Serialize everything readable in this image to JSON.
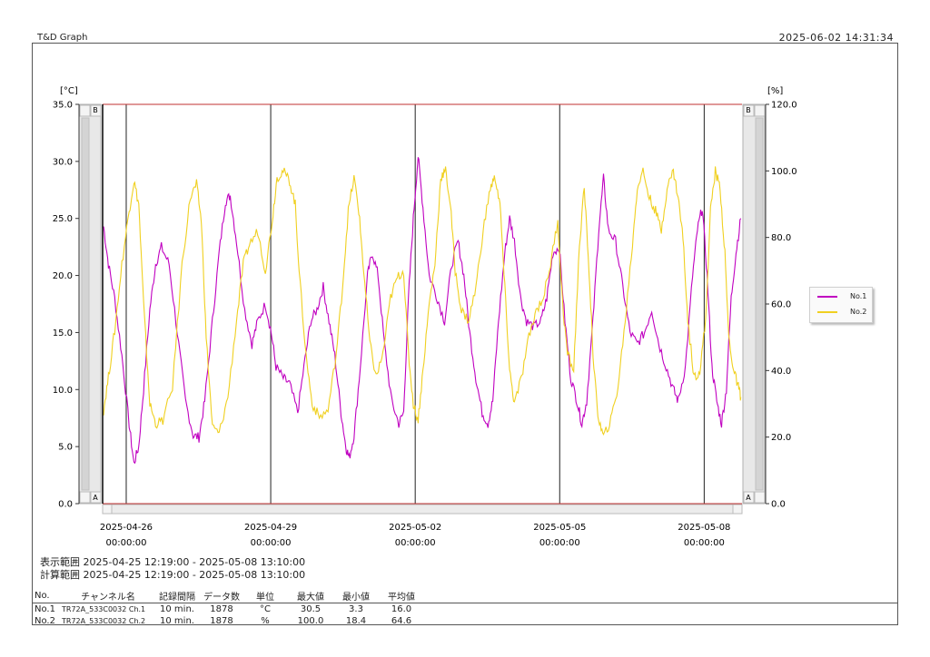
{
  "header": {
    "title": "T&D Graph",
    "timestamp": "2025-06-02 14:31:34"
  },
  "chart_data": {
    "type": "line",
    "y_left": {
      "unit_label": "[°C]",
      "min": 0,
      "max": 35,
      "ticks": [
        "0.0",
        "5.0",
        "10.0",
        "15.0",
        "20.0",
        "25.0",
        "30.0",
        "35.0"
      ],
      "tick_values": [
        0,
        5,
        10,
        15,
        20,
        25,
        30,
        35
      ]
    },
    "y_right": {
      "unit_label": "[%]",
      "min": 0,
      "max": 120,
      "ticks": [
        "0.0",
        "20.0",
        "40.0",
        "60.0",
        "80.0",
        "100.0",
        "120.0"
      ],
      "tick_values": [
        0,
        20,
        40,
        60,
        80,
        100,
        120
      ]
    },
    "x_axis": {
      "ticks": [
        {
          "date": "2025-04-26",
          "time": "00:00:00",
          "day": 0.49
        },
        {
          "date": "2025-04-29",
          "time": "00:00:00",
          "day": 3.49
        },
        {
          "date": "2025-05-02",
          "time": "00:00:00",
          "day": 6.49
        },
        {
          "date": "2025-05-05",
          "time": "00:00:00",
          "day": 9.49
        },
        {
          "date": "2025-05-08",
          "time": "00:00:00",
          "day": 12.49
        }
      ]
    },
    "cursor_labels": {
      "top": "B",
      "bottom": "A"
    },
    "series": [
      {
        "name": "No.1",
        "axis": "left",
        "color": "#c000c0",
        "points": [
          [
            0.02,
            24.3
          ],
          [
            0.12,
            21
          ],
          [
            0.25,
            18
          ],
          [
            0.4,
            13
          ],
          [
            0.55,
            7
          ],
          [
            0.65,
            3.5
          ],
          [
            0.75,
            5
          ],
          [
            0.85,
            10
          ],
          [
            0.98,
            17
          ],
          [
            1.1,
            21
          ],
          [
            1.22,
            22.5
          ],
          [
            1.38,
            21
          ],
          [
            1.55,
            15
          ],
          [
            1.72,
            9
          ],
          [
            1.88,
            6
          ],
          [
            2.0,
            5.8
          ],
          [
            2.12,
            9
          ],
          [
            2.28,
            16
          ],
          [
            2.42,
            22
          ],
          [
            2.55,
            26.5
          ],
          [
            2.65,
            27
          ],
          [
            2.78,
            23
          ],
          [
            2.95,
            17
          ],
          [
            3.1,
            14
          ],
          [
            3.22,
            16
          ],
          [
            3.38,
            17.5
          ],
          [
            3.5,
            15
          ],
          [
            3.6,
            12
          ],
          [
            3.75,
            11
          ],
          [
            3.88,
            10.5
          ],
          [
            4.05,
            8
          ],
          [
            4.18,
            12
          ],
          [
            4.32,
            16
          ],
          [
            4.45,
            17
          ],
          [
            4.58,
            19
          ],
          [
            4.7,
            16
          ],
          [
            4.82,
            13
          ],
          [
            4.95,
            8
          ],
          [
            5.05,
            5
          ],
          [
            5.12,
            4
          ],
          [
            5.22,
            6
          ],
          [
            5.35,
            12
          ],
          [
            5.5,
            20
          ],
          [
            5.6,
            22
          ],
          [
            5.72,
            20
          ],
          [
            5.85,
            14
          ],
          [
            6.0,
            9
          ],
          [
            6.15,
            7
          ],
          [
            6.25,
            8
          ],
          [
            6.35,
            18
          ],
          [
            6.45,
            25
          ],
          [
            6.55,
            30.5
          ],
          [
            6.65,
            26
          ],
          [
            6.78,
            20
          ],
          [
            6.95,
            18
          ],
          [
            7.1,
            16
          ],
          [
            7.25,
            21
          ],
          [
            7.38,
            23
          ],
          [
            7.5,
            20
          ],
          [
            7.62,
            15
          ],
          [
            7.75,
            11
          ],
          [
            7.88,
            8
          ],
          [
            8.0,
            7
          ],
          [
            8.1,
            9
          ],
          [
            8.22,
            16
          ],
          [
            8.35,
            22
          ],
          [
            8.45,
            25
          ],
          [
            8.55,
            23
          ],
          [
            8.68,
            18
          ],
          [
            8.8,
            16
          ],
          [
            8.95,
            15.5
          ],
          [
            9.1,
            16
          ],
          [
            9.22,
            18
          ],
          [
            9.35,
            22
          ],
          [
            9.48,
            22.5
          ],
          [
            9.6,
            16
          ],
          [
            9.72,
            11
          ],
          [
            9.85,
            9
          ],
          [
            9.95,
            7
          ],
          [
            10.05,
            9
          ],
          [
            10.18,
            16
          ],
          [
            10.3,
            24
          ],
          [
            10.4,
            28.5
          ],
          [
            10.5,
            24
          ],
          [
            10.65,
            23
          ],
          [
            10.8,
            19
          ],
          [
            10.95,
            15
          ],
          [
            11.1,
            14
          ],
          [
            11.25,
            15
          ],
          [
            11.4,
            17
          ],
          [
            11.55,
            14
          ],
          [
            11.7,
            12
          ],
          [
            11.85,
            10
          ],
          [
            11.95,
            9
          ],
          [
            12.1,
            12
          ],
          [
            12.25,
            20
          ],
          [
            12.35,
            24
          ],
          [
            12.45,
            26
          ],
          [
            12.55,
            20
          ],
          [
            12.65,
            12
          ],
          [
            12.75,
            9
          ],
          [
            12.85,
            7
          ],
          [
            12.95,
            10
          ],
          [
            13.05,
            18
          ],
          [
            13.15,
            22
          ],
          [
            13.25,
            25
          ]
        ]
      },
      {
        "name": "No.2",
        "axis": "right",
        "color": "#f0d020",
        "points": [
          [
            0.02,
            28
          ],
          [
            0.12,
            38
          ],
          [
            0.25,
            52
          ],
          [
            0.4,
            72
          ],
          [
            0.55,
            88
          ],
          [
            0.65,
            97
          ],
          [
            0.75,
            90
          ],
          [
            0.85,
            60
          ],
          [
            0.98,
            30
          ],
          [
            1.1,
            24
          ],
          [
            1.25,
            25
          ],
          [
            1.45,
            35
          ],
          [
            1.65,
            72
          ],
          [
            1.82,
            92
          ],
          [
            1.95,
            96
          ],
          [
            2.05,
            85
          ],
          [
            2.15,
            50
          ],
          [
            2.28,
            23
          ],
          [
            2.42,
            21
          ],
          [
            2.6,
            32
          ],
          [
            2.78,
            55
          ],
          [
            2.92,
            72
          ],
          [
            3.05,
            78
          ],
          [
            3.22,
            82
          ],
          [
            3.38,
            70
          ],
          [
            3.52,
            85
          ],
          [
            3.62,
            98
          ],
          [
            3.75,
            100
          ],
          [
            3.88,
            97
          ],
          [
            4.0,
            90
          ],
          [
            4.08,
            70
          ],
          [
            4.22,
            45
          ],
          [
            4.35,
            30
          ],
          [
            4.5,
            26
          ],
          [
            4.68,
            28
          ],
          [
            4.85,
            45
          ],
          [
            4.98,
            65
          ],
          [
            5.1,
            88
          ],
          [
            5.22,
            98
          ],
          [
            5.32,
            88
          ],
          [
            5.42,
            70
          ],
          [
            5.55,
            48
          ],
          [
            5.68,
            38
          ],
          [
            5.82,
            45
          ],
          [
            5.98,
            62
          ],
          [
            6.12,
            68
          ],
          [
            6.25,
            70
          ],
          [
            6.35,
            45
          ],
          [
            6.45,
            30
          ],
          [
            6.55,
            25
          ],
          [
            6.65,
            40
          ],
          [
            6.78,
            60
          ],
          [
            6.9,
            72
          ],
          [
            7.02,
            98
          ],
          [
            7.12,
            100
          ],
          [
            7.22,
            90
          ],
          [
            7.32,
            70
          ],
          [
            7.45,
            58
          ],
          [
            7.6,
            55
          ],
          [
            7.75,
            65
          ],
          [
            7.9,
            82
          ],
          [
            8.05,
            95
          ],
          [
            8.15,
            98
          ],
          [
            8.25,
            90
          ],
          [
            8.35,
            65
          ],
          [
            8.45,
            40
          ],
          [
            8.55,
            30
          ],
          [
            8.7,
            38
          ],
          [
            8.85,
            50
          ],
          [
            9.0,
            58
          ],
          [
            9.15,
            62
          ],
          [
            9.3,
            72
          ],
          [
            9.45,
            85
          ],
          [
            9.55,
            60
          ],
          [
            9.65,
            45
          ],
          [
            9.78,
            40
          ],
          [
            9.9,
            78
          ],
          [
            10.0,
            95
          ],
          [
            10.1,
            70
          ],
          [
            10.2,
            40
          ],
          [
            10.3,
            25
          ],
          [
            10.4,
            20
          ],
          [
            10.55,
            25
          ],
          [
            10.7,
            35
          ],
          [
            10.85,
            55
          ],
          [
            11.0,
            78
          ],
          [
            11.1,
            95
          ],
          [
            11.22,
            100
          ],
          [
            11.35,
            92
          ],
          [
            11.48,
            88
          ],
          [
            11.6,
            82
          ],
          [
            11.72,
            95
          ],
          [
            11.85,
            100
          ],
          [
            11.95,
            92
          ],
          [
            12.05,
            80
          ],
          [
            12.15,
            55
          ],
          [
            12.28,
            38
          ],
          [
            12.4,
            40
          ],
          [
            12.52,
            55
          ],
          [
            12.62,
            88
          ],
          [
            12.72,
            100
          ],
          [
            12.82,
            95
          ],
          [
            12.92,
            75
          ],
          [
            13.0,
            50
          ],
          [
            13.1,
            40
          ],
          [
            13.2,
            35
          ],
          [
            13.25,
            32
          ]
        ]
      }
    ]
  },
  "range": {
    "display_label": "表示範囲",
    "display_value": "2025-04-25 12:19:00 - 2025-05-08 13:10:00",
    "calc_label": "計算範囲",
    "calc_value": "2025-04-25 12:19:00 - 2025-05-08 13:10:00"
  },
  "stats": {
    "headers": [
      "No.",
      "チャンネル名",
      "記録間隔",
      "データ数",
      "単位",
      "最大値",
      "最小値",
      "平均値"
    ],
    "rows": [
      {
        "no": "No.1",
        "channel": "TR72A_533C0032 Ch.1",
        "interval": "10 min.",
        "count": "1878",
        "unit": "°C",
        "max": "30.5",
        "min": "3.3",
        "avg": "16.0"
      },
      {
        "no": "No.2",
        "channel": "TR72A_533C0032 Ch.2",
        "interval": "10 min.",
        "count": "1878",
        "unit": "%",
        "max": "100.0",
        "min": "18.4",
        "avg": "64.6"
      }
    ]
  }
}
